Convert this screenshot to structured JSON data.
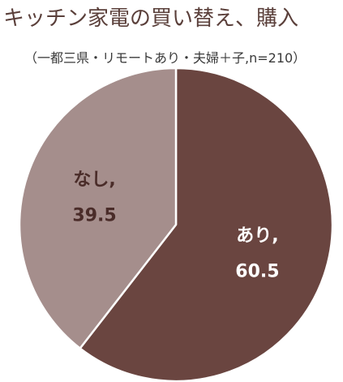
{
  "chart_data": {
    "type": "pie",
    "title": "キッチン家電の買い替え、購入",
    "subtitle": "（一都三県・リモートあり・夫婦＋子,n=210）",
    "slices": [
      {
        "label": "あり,",
        "value": 60.5,
        "value_text": "60.5",
        "color": "#6a4540",
        "text_color": "#ffffff"
      },
      {
        "label": "なし,",
        "value": 39.5,
        "value_text": "39.5",
        "color": "#a58e8c",
        "text_color": "#4a2c29"
      }
    ],
    "start_angle_deg": 0,
    "direction": "clockwise",
    "legend": "none"
  }
}
